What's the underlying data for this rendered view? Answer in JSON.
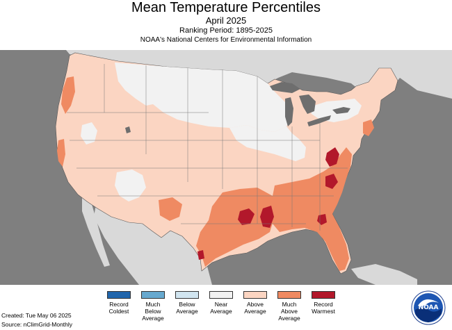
{
  "header": {
    "title": "Mean Temperature Percentiles",
    "subtitle": "April 2025",
    "ranking_period": "Ranking Period: 1895-2025",
    "source_agency": "NOAA's National Centers for Environmental Information"
  },
  "colors": {
    "ocean_background": "#7f7f7f",
    "land_neighbor": "#d9d9d9",
    "lakes": "#6e6e6e",
    "record_coldest": "#2166ac",
    "much_below": "#67a9cf",
    "below": "#d1e5f0",
    "near": "#f2f2f2",
    "above": "#fbd5c2",
    "much_above": "#ef8a62",
    "record_warmest": "#b2182b"
  },
  "legend": {
    "items": [
      {
        "label": "Record\nColdest",
        "color": "#2166ac"
      },
      {
        "label": "Much\nBelow\nAverage",
        "color": "#67a9cf"
      },
      {
        "label": "Below\nAverage",
        "color": "#d1e5f0"
      },
      {
        "label": "Near\nAverage",
        "color": "#f2f2f2"
      },
      {
        "label": "Above\nAverage",
        "color": "#fbd5c2"
      },
      {
        "label": "Much\nAbove\nAverage",
        "color": "#ef8a62"
      },
      {
        "label": "Record\nWarmest",
        "color": "#b2182b"
      }
    ]
  },
  "footer": {
    "created": "Created: Tue May 06 2025",
    "source": "Source: nClimGrid-Monthly"
  },
  "logo": {
    "text": "NOAA",
    "icon": "noaa-logo-icon"
  }
}
